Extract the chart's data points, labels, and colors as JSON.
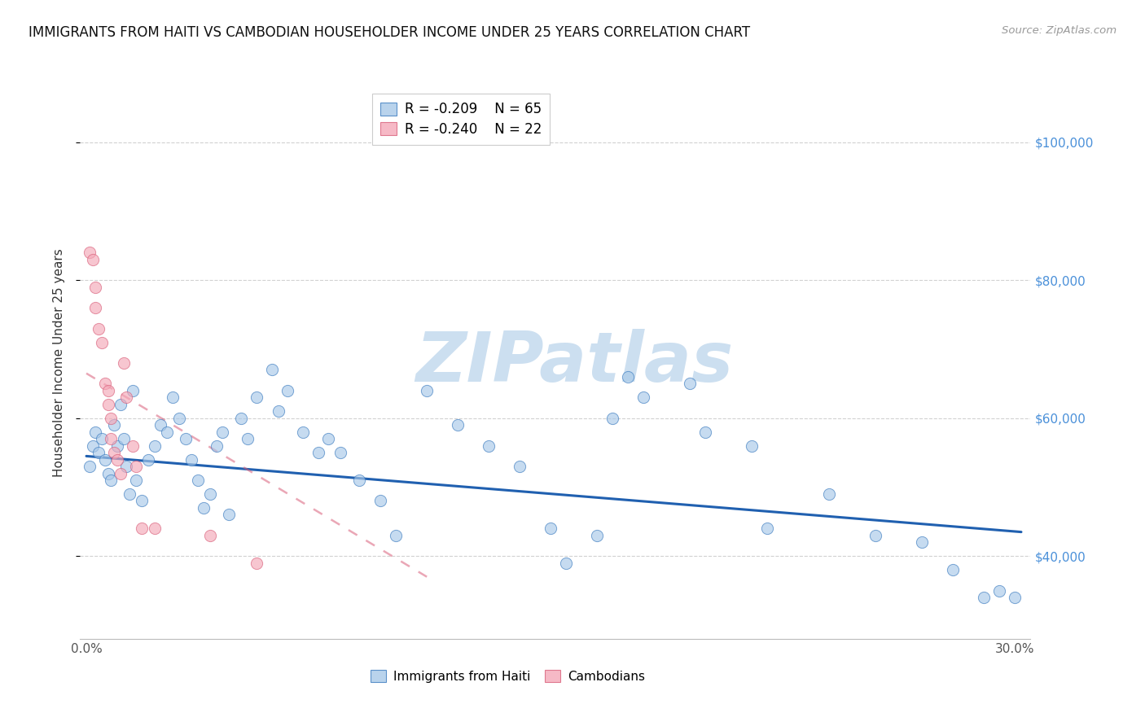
{
  "title": "IMMIGRANTS FROM HAITI VS CAMBODIAN HOUSEHOLDER INCOME UNDER 25 YEARS CORRELATION CHART",
  "source": "Source: ZipAtlas.com",
  "ylabel": "Householder Income Under 25 years",
  "xlim": [
    -0.002,
    0.305
  ],
  "ylim": [
    28000,
    108000
  ],
  "yticks": [
    40000,
    60000,
    80000,
    100000
  ],
  "ytick_labels": [
    "$40,000",
    "$60,000",
    "$80,000",
    "$100,000"
  ],
  "xtick_positions": [
    0.0,
    0.05,
    0.1,
    0.15,
    0.2,
    0.25,
    0.3
  ],
  "watermark": "ZIPatlas",
  "legend_haiti_r": "R = -0.209",
  "legend_haiti_n": "N = 65",
  "legend_cambodian_r": "R = -0.240",
  "legend_cambodian_n": "N = 22",
  "haiti_color": "#a8c8e8",
  "cambodian_color": "#f4a8b8",
  "haiti_edge_color": "#3a7abf",
  "cambodian_edge_color": "#d95f7a",
  "haiti_line_color": "#2060b0",
  "cambodian_line_color": "#d95f7a",
  "haiti_scatter_x": [
    0.001,
    0.002,
    0.003,
    0.004,
    0.005,
    0.006,
    0.007,
    0.008,
    0.009,
    0.01,
    0.011,
    0.012,
    0.013,
    0.014,
    0.015,
    0.016,
    0.018,
    0.02,
    0.022,
    0.024,
    0.026,
    0.028,
    0.03,
    0.032,
    0.034,
    0.036,
    0.038,
    0.04,
    0.042,
    0.044,
    0.046,
    0.05,
    0.052,
    0.055,
    0.06,
    0.062,
    0.065,
    0.07,
    0.075,
    0.078,
    0.082,
    0.088,
    0.095,
    0.1,
    0.11,
    0.12,
    0.13,
    0.14,
    0.15,
    0.155,
    0.165,
    0.17,
    0.175,
    0.18,
    0.195,
    0.2,
    0.215,
    0.22,
    0.24,
    0.255,
    0.27,
    0.28,
    0.29,
    0.295,
    0.3
  ],
  "haiti_scatter_y": [
    53000,
    56000,
    58000,
    55000,
    57000,
    54000,
    52000,
    51000,
    59000,
    56000,
    62000,
    57000,
    53000,
    49000,
    64000,
    51000,
    48000,
    54000,
    56000,
    59000,
    58000,
    63000,
    60000,
    57000,
    54000,
    51000,
    47000,
    49000,
    56000,
    58000,
    46000,
    60000,
    57000,
    63000,
    67000,
    61000,
    64000,
    58000,
    55000,
    57000,
    55000,
    51000,
    48000,
    43000,
    64000,
    59000,
    56000,
    53000,
    44000,
    39000,
    43000,
    60000,
    66000,
    63000,
    65000,
    58000,
    56000,
    44000,
    49000,
    43000,
    42000,
    38000,
    34000,
    35000,
    34000
  ],
  "cambodian_scatter_x": [
    0.001,
    0.002,
    0.003,
    0.003,
    0.004,
    0.005,
    0.006,
    0.007,
    0.007,
    0.008,
    0.008,
    0.009,
    0.01,
    0.011,
    0.012,
    0.013,
    0.015,
    0.016,
    0.018,
    0.022,
    0.04,
    0.055
  ],
  "cambodian_scatter_y": [
    84000,
    83000,
    79000,
    76000,
    73000,
    71000,
    65000,
    64000,
    62000,
    60000,
    57000,
    55000,
    54000,
    52000,
    68000,
    63000,
    56000,
    53000,
    44000,
    44000,
    43000,
    39000
  ],
  "haiti_trendline_x": [
    0.0,
    0.302
  ],
  "haiti_trendline_y": [
    54500,
    43500
  ],
  "cambodian_trendline_x": [
    0.0,
    0.11
  ],
  "cambodian_trendline_y": [
    66500,
    37000
  ],
  "background_color": "#ffffff",
  "grid_color": "#cccccc",
  "title_fontsize": 12,
  "ylabel_fontsize": 11,
  "tick_fontsize": 11,
  "legend_fontsize": 12,
  "watermark_color": "#ccdff0",
  "watermark_fontsize": 62,
  "right_ytick_color": "#4a90d9"
}
